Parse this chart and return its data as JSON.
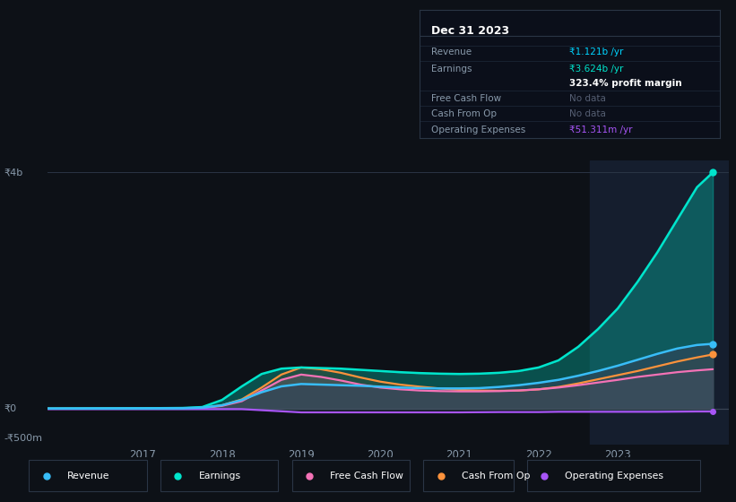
{
  "background_color": "#0d1117",
  "chart_bg": "#0d1117",
  "title_text": "Dec 31 2023",
  "info_box_rows": [
    {
      "label": "Revenue",
      "value": "₹1.121b /yr",
      "value_color": "#00d4ff"
    },
    {
      "label": "Earnings",
      "value": "₹3.624b /yr",
      "value_color": "#00e5cc"
    },
    {
      "label": "",
      "value": "323.4% profit margin",
      "value_color": "#ffffff",
      "bold": true
    },
    {
      "label": "Free Cash Flow",
      "value": "No data",
      "value_color": "#555e72"
    },
    {
      "label": "Cash From Op",
      "value": "No data",
      "value_color": "#555e72"
    },
    {
      "label": "Operating Expenses",
      "value": "₹51.311m /yr",
      "value_color": "#a855f7"
    }
  ],
  "ylim": [
    -600,
    4200
  ],
  "xlim": [
    2015.8,
    2024.4
  ],
  "y_ticks": [
    {
      "val": 4000,
      "label": "₹4b"
    },
    {
      "val": 0,
      "label": "₹0"
    },
    {
      "val": -500,
      "label": "-₹500m"
    }
  ],
  "x_ticks": [
    {
      "val": 2017,
      "label": "2017"
    },
    {
      "val": 2018,
      "label": "2018"
    },
    {
      "val": 2019,
      "label": "2019"
    },
    {
      "val": 2020,
      "label": "2020"
    },
    {
      "val": 2021,
      "label": "2021"
    },
    {
      "val": 2022,
      "label": "2022"
    },
    {
      "val": 2023,
      "label": "2023"
    }
  ],
  "highlight_x": 2022.65,
  "series": {
    "earnings": {
      "color": "#00e5cc",
      "label": "Earnings",
      "x": [
        2015.8,
        2016.0,
        2016.5,
        2017.0,
        2017.5,
        2017.75,
        2018.0,
        2018.25,
        2018.5,
        2018.75,
        2019.0,
        2019.25,
        2019.5,
        2019.75,
        2020.0,
        2020.25,
        2020.5,
        2020.75,
        2021.0,
        2021.25,
        2021.5,
        2021.75,
        2022.0,
        2022.25,
        2022.5,
        2022.75,
        2023.0,
        2023.25,
        2023.5,
        2023.75,
        2024.0,
        2024.2
      ],
      "y": [
        5,
        6,
        8,
        10,
        15,
        30,
        150,
        380,
        590,
        680,
        700,
        690,
        680,
        660,
        640,
        620,
        605,
        595,
        590,
        595,
        610,
        640,
        700,
        820,
        1050,
        1350,
        1700,
        2150,
        2650,
        3200,
        3750,
        4000
      ]
    },
    "revenue": {
      "color": "#38bdf8",
      "label": "Revenue",
      "x": [
        2015.8,
        2016.0,
        2016.5,
        2017.0,
        2017.5,
        2017.75,
        2018.0,
        2018.25,
        2018.5,
        2018.75,
        2019.0,
        2019.25,
        2019.5,
        2019.75,
        2020.0,
        2020.25,
        2020.5,
        2020.75,
        2021.0,
        2021.25,
        2021.5,
        2021.75,
        2022.0,
        2022.25,
        2022.5,
        2022.75,
        2023.0,
        2023.25,
        2023.5,
        2023.75,
        2024.0,
        2024.2
      ],
      "y": [
        5,
        6,
        7,
        8,
        10,
        20,
        60,
        150,
        280,
        380,
        420,
        410,
        400,
        390,
        375,
        360,
        350,
        345,
        345,
        350,
        370,
        400,
        440,
        490,
        560,
        640,
        730,
        830,
        930,
        1020,
        1080,
        1100
      ]
    },
    "free_cash_flow": {
      "color": "#f472b6",
      "label": "Free Cash Flow",
      "x": [
        2015.8,
        2016.0,
        2016.5,
        2017.0,
        2017.5,
        2017.75,
        2018.0,
        2018.25,
        2018.5,
        2018.75,
        2019.0,
        2019.25,
        2019.5,
        2019.75,
        2020.0,
        2020.25,
        2020.5,
        2020.75,
        2021.0,
        2021.25,
        2021.5,
        2021.75,
        2022.0,
        2022.25,
        2022.5,
        2022.75,
        2023.0,
        2023.25,
        2023.5,
        2023.75,
        2024.0,
        2024.2
      ],
      "y": [
        3,
        3,
        4,
        5,
        8,
        15,
        50,
        130,
        310,
        490,
        580,
        540,
        480,
        410,
        360,
        330,
        310,
        300,
        295,
        295,
        300,
        310,
        330,
        360,
        400,
        445,
        490,
        540,
        580,
        620,
        650,
        670
      ]
    },
    "cash_from_op": {
      "color": "#fb923c",
      "label": "Cash From Op",
      "x": [
        2015.8,
        2016.0,
        2016.5,
        2017.0,
        2017.5,
        2017.75,
        2018.0,
        2018.25,
        2018.5,
        2018.75,
        2019.0,
        2019.25,
        2019.5,
        2019.75,
        2020.0,
        2020.25,
        2020.5,
        2020.75,
        2021.0,
        2021.25,
        2021.5,
        2021.75,
        2022.0,
        2022.25,
        2022.5,
        2022.75,
        2023.0,
        2023.25,
        2023.5,
        2023.75,
        2024.0,
        2024.2
      ],
      "y": [
        3,
        3,
        4,
        5,
        8,
        18,
        60,
        160,
        360,
        580,
        700,
        670,
        610,
        530,
        460,
        410,
        375,
        345,
        320,
        310,
        305,
        310,
        330,
        370,
        430,
        500,
        570,
        640,
        720,
        800,
        870,
        920
      ]
    },
    "operating_expenses": {
      "color": "#a855f7",
      "label": "Operating Expenses",
      "x": [
        2015.8,
        2016.0,
        2016.5,
        2017.0,
        2017.5,
        2017.75,
        2018.0,
        2018.25,
        2019.0,
        2019.5,
        2020.0,
        2020.5,
        2021.0,
        2021.5,
        2021.75,
        2022.0,
        2022.25,
        2022.5,
        2022.75,
        2023.0,
        2023.5,
        2024.0,
        2024.2
      ],
      "y": [
        -5,
        -5,
        -5,
        -5,
        -5,
        -5,
        -5,
        -5,
        -60,
        -60,
        -60,
        -60,
        -60,
        -55,
        -55,
        -55,
        -50,
        -50,
        -50,
        -50,
        -50,
        -45,
        -45
      ]
    }
  },
  "legend": [
    {
      "label": "Revenue",
      "color": "#38bdf8"
    },
    {
      "label": "Earnings",
      "color": "#00e5cc"
    },
    {
      "label": "Free Cash Flow",
      "color": "#f472b6"
    },
    {
      "label": "Cash From Op",
      "color": "#fb923c"
    },
    {
      "label": "Operating Expenses",
      "color": "#a855f7"
    }
  ]
}
